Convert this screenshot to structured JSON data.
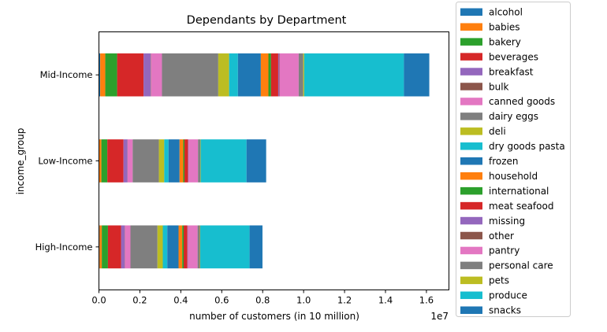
{
  "chart_data": {
    "type": "bar",
    "orientation": "horizontal",
    "stacked": true,
    "title": "Dependants by Department",
    "xlabel": "number of customers (in 10 million)",
    "ylabel": "income_group",
    "x_offset_text": "1e7",
    "xlim": [
      0,
      17100000
    ],
    "x_ticks": [
      0,
      2000000,
      4000000,
      6000000,
      8000000,
      10000000,
      12000000,
      14000000,
      16000000
    ],
    "x_tick_labels": [
      "0.0",
      "0.2",
      "0.4",
      "0.6",
      "0.8",
      "1.0",
      "1.2",
      "1.4",
      "1.6"
    ],
    "categories": [
      "High-Income",
      "Low-Income",
      "Mid-Income"
    ],
    "grid": false,
    "legend_position": "outside right",
    "series": [
      {
        "name": "alcohol",
        "color": "#1f77b4",
        "values": [
          30000,
          20000,
          60000
        ]
      },
      {
        "name": "babies",
        "color": "#ff7f0e",
        "values": [
          110000,
          100000,
          250000
        ]
      },
      {
        "name": "bakery",
        "color": "#2ca02c",
        "values": [
          300000,
          290000,
          580000
        ]
      },
      {
        "name": "beverages",
        "color": "#d62728",
        "values": [
          640000,
          790000,
          1290000
        ]
      },
      {
        "name": "breakfast",
        "color": "#9467bd",
        "values": [
          180000,
          190000,
          350000
        ]
      },
      {
        "name": "bulk",
        "color": "#8c564b",
        "values": [
          10000,
          10000,
          20000
        ]
      },
      {
        "name": "canned goods",
        "color": "#e377c2",
        "values": [
          270000,
          250000,
          530000
        ]
      },
      {
        "name": "dairy eggs",
        "color": "#7f7f7f",
        "values": [
          1320000,
          1280000,
          2750000
        ]
      },
      {
        "name": "deli",
        "color": "#bcbd22",
        "values": [
          260000,
          260000,
          530000
        ]
      },
      {
        "name": "dry goods pasta",
        "color": "#17becf",
        "values": [
          220000,
          210000,
          430000
        ]
      },
      {
        "name": "frozen",
        "color": "#1f77b4",
        "values": [
          550000,
          540000,
          1120000
        ]
      },
      {
        "name": "household",
        "color": "#ff7f0e",
        "values": [
          180000,
          180000,
          370000
        ]
      },
      {
        "name": "international",
        "color": "#2ca02c",
        "values": [
          70000,
          60000,
          130000
        ]
      },
      {
        "name": "meat seafood",
        "color": "#d62728",
        "values": [
          180000,
          170000,
          350000
        ]
      },
      {
        "name": "missing",
        "color": "#9467bd",
        "values": [
          20000,
          20000,
          40000
        ]
      },
      {
        "name": "other",
        "color": "#8c564b",
        "values": [
          10000,
          10000,
          20000
        ]
      },
      {
        "name": "pantry",
        "color": "#e377c2",
        "values": [
          470000,
          460000,
          940000
        ]
      },
      {
        "name": "personal care",
        "color": "#7f7f7f",
        "values": [
          110000,
          110000,
          220000
        ]
      },
      {
        "name": "pets",
        "color": "#bcbd22",
        "values": [
          20000,
          20000,
          50000
        ]
      },
      {
        "name": "produce",
        "color": "#17becf",
        "values": [
          2410000,
          2240000,
          4870000
        ]
      },
      {
        "name": "snacks",
        "color": "#1f77b4",
        "values": [
          630000,
          960000,
          1240000
        ]
      }
    ]
  }
}
